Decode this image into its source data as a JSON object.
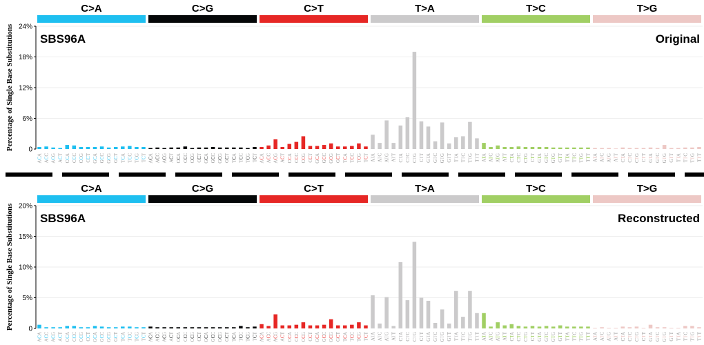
{
  "mutation_classes": [
    {
      "label": "C>A",
      "color": "#1ebff0"
    },
    {
      "label": "C>G",
      "color": "#050708"
    },
    {
      "label": "C>T",
      "color": "#e62725"
    },
    {
      "label": "T>A",
      "color": "#cbcacb"
    },
    {
      "label": "T>C",
      "color": "#a1cf64"
    },
    {
      "label": "T>G",
      "color": "#edc8c5"
    }
  ],
  "contexts": {
    "C": [
      "ACA",
      "ACC",
      "ACG",
      "ACT",
      "CCA",
      "CCC",
      "CCG",
      "CCT",
      "GCA",
      "GCC",
      "GCG",
      "GCT",
      "TCA",
      "TCC",
      "TCG",
      "TCT"
    ],
    "T": [
      "ATA",
      "ATC",
      "ATG",
      "ATT",
      "CTA",
      "CTC",
      "CTG",
      "CTT",
      "GTA",
      "GTC",
      "GTG",
      "GTT",
      "TTA",
      "TTC",
      "TTG",
      "TTT"
    ]
  },
  "chart_data": [
    {
      "type": "bar",
      "title": "SBS96A",
      "subtitle": "Original",
      "ylabel": "Percentage of Single Base Substitutions",
      "ylim": [
        0,
        24
      ],
      "y_ticks": [
        "0",
        "6%",
        "12%",
        "18%",
        "24%"
      ],
      "y_tick_values": [
        0,
        6,
        12,
        18,
        24
      ],
      "grid": true,
      "series": [
        {
          "values": [
            0.4,
            0.5,
            0.3,
            0.2,
            0.8,
            0.7,
            0.4,
            0.4,
            0.4,
            0.5,
            0.3,
            0.4,
            0.5,
            0.6,
            0.4,
            0.4,
            0.2,
            0.3,
            0.2,
            0.3,
            0.3,
            0.5,
            0.2,
            0.3,
            0.3,
            0.4,
            0.3,
            0.3,
            0.3,
            0.3,
            0.2,
            0.4,
            0.4,
            0.7,
            1.9,
            0.4,
            1.0,
            1.4,
            2.5,
            0.6,
            0.6,
            0.8,
            1.1,
            0.5,
            0.5,
            0.6,
            1.1,
            0.5,
            2.8,
            1.2,
            5.6,
            1.2,
            4.6,
            6.2,
            19.0,
            5.4,
            4.4,
            1.5,
            5.2,
            1.1,
            2.3,
            2.5,
            5.3,
            2.1,
            1.2,
            0.4,
            0.7,
            0.4,
            0.4,
            0.5,
            0.4,
            0.4,
            0.4,
            0.4,
            0.3,
            0.3,
            0.3,
            0.3,
            0.3,
            0.3,
            0.2,
            0.2,
            0.2,
            0.1,
            0.3,
            0.2,
            0.2,
            0.2,
            0.3,
            0.2,
            0.8,
            0.2,
            0.2,
            0.3,
            0.3,
            0.4
          ]
        }
      ]
    },
    {
      "type": "bar",
      "title": "SBS96A",
      "subtitle": "Reconstructed",
      "ylabel": "Percentage of Single Base Substitutions",
      "ylim": [
        0,
        20
      ],
      "y_ticks": [
        "0",
        "5%",
        "10%",
        "15%",
        "20%"
      ],
      "y_tick_values": [
        0,
        5,
        10,
        15,
        20
      ],
      "grid": true,
      "series": [
        {
          "values": [
            0.6,
            0.2,
            0.2,
            0.2,
            0.4,
            0.4,
            0.2,
            0.2,
            0.4,
            0.3,
            0.2,
            0.2,
            0.3,
            0.3,
            0.2,
            0.2,
            0.3,
            0.2,
            0.2,
            0.2,
            0.2,
            0.2,
            0.2,
            0.2,
            0.2,
            0.2,
            0.2,
            0.2,
            0.2,
            0.4,
            0.2,
            0.3,
            0.7,
            0.4,
            2.3,
            0.5,
            0.5,
            0.6,
            1.0,
            0.5,
            0.5,
            0.6,
            1.5,
            0.5,
            0.5,
            0.6,
            1.0,
            0.5,
            5.4,
            0.8,
            5.1,
            0.4,
            10.8,
            4.6,
            14.1,
            5.0,
            4.5,
            0.9,
            3.1,
            0.8,
            6.1,
            1.9,
            6.1,
            2.5,
            2.5,
            0.3,
            1.0,
            0.5,
            0.7,
            0.4,
            0.3,
            0.4,
            0.3,
            0.4,
            0.3,
            0.5,
            0.3,
            0.3,
            0.3,
            0.3,
            0.1,
            0.2,
            0.1,
            0.1,
            0.3,
            0.2,
            0.3,
            0.1,
            0.6,
            0.2,
            0.2,
            0.1,
            0.1,
            0.4,
            0.4,
            0.2
          ]
        }
      ]
    }
  ]
}
